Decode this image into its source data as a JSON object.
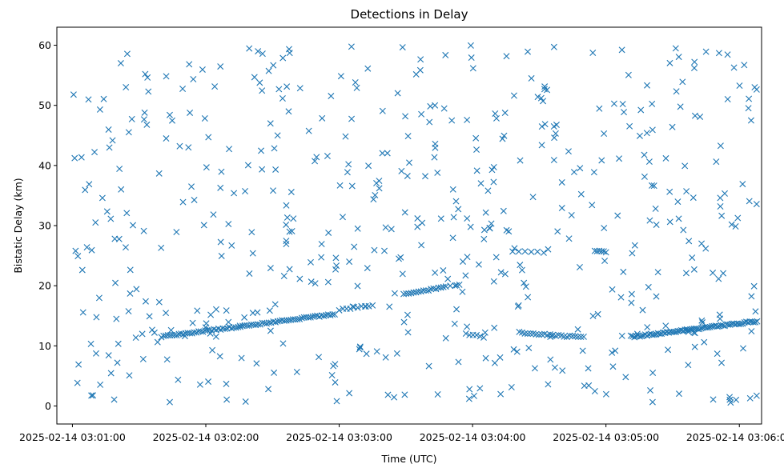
{
  "chart_data": {
    "type": "scatter",
    "title": "Detections in Delay",
    "xlabel": "Time (UTC)",
    "ylabel": "Bistatic Delay (km)",
    "marker": "x",
    "color": "#1f77b4",
    "grid": false,
    "x_ticks": [
      "2025-02-14 03:01:00",
      "2025-02-14 03:02:00",
      "2025-02-14 03:03:00",
      "2025-02-14 03:04:00",
      "2025-02-14 03:05:00",
      "2025-02-14 03:06:00"
    ],
    "xlim": [
      "2025-02-14 03:00:53",
      "2025-02-14 03:06:10"
    ],
    "y_ticks": [
      0,
      10,
      20,
      30,
      40,
      50,
      60
    ],
    "ylim": [
      -3,
      63
    ],
    "tracks": [
      {
        "t_start": "2025-02-14 03:01:40",
        "t_end": "2025-02-14 03:02:58",
        "y_start": 11.5,
        "y_end": 15.3,
        "count": 80
      },
      {
        "t_start": "2025-02-14 03:03:00",
        "t_end": "2025-02-14 03:03:15",
        "y_start": 16.0,
        "y_end": 16.8,
        "count": 10
      },
      {
        "t_start": "2025-02-14 03:03:29",
        "t_end": "2025-02-14 03:03:48",
        "y_start": 18.5,
        "y_end": 19.9,
        "count": 18
      },
      {
        "t_start": "2025-02-14 03:03:57",
        "t_end": "2025-02-14 03:04:05",
        "y_start": 12.0,
        "y_end": 11.5,
        "count": 6
      },
      {
        "t_start": "2025-02-14 03:04:21",
        "t_end": "2025-02-14 03:04:50",
        "y_start": 12.2,
        "y_end": 11.4,
        "count": 24
      },
      {
        "t_start": "2025-02-14 03:04:18",
        "t_end": "2025-02-14 03:04:32",
        "y_start": 25.6,
        "y_end": 25.6,
        "count": 6
      },
      {
        "t_start": "2025-02-14 03:04:55",
        "t_end": "2025-02-14 03:05:00",
        "y_start": 25.8,
        "y_end": 25.6,
        "count": 6
      },
      {
        "t_start": "2025-02-14 03:05:12",
        "t_end": "2025-02-14 03:06:08",
        "y_start": 11.5,
        "y_end": 14.1,
        "count": 70
      }
    ],
    "clutter": {
      "t_start": "2025-02-14 03:01:00",
      "t_end": "2025-02-14 03:06:08",
      "y_range": [
        0.5,
        60
      ],
      "count": 540
    }
  }
}
